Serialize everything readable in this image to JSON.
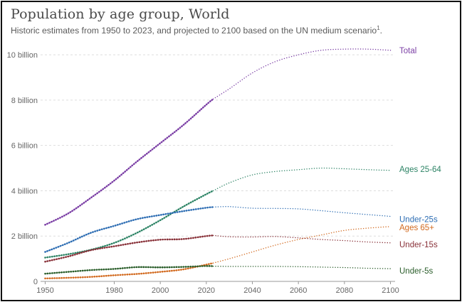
{
  "header": {
    "title": "Population by age group, World",
    "subtitle": "Historic estimates from 1950 to 2023, and projected to 2100 based on the UN medium scenario",
    "subtitle_footnote": "1",
    "subtitle_end": "."
  },
  "chart_data": {
    "type": "line",
    "title": "Population by age group, World",
    "subtitle": "Historic estimates from 1950 to 2023, and projected to 2100 based on the UN medium scenario",
    "xlabel": "",
    "ylabel": "",
    "xlim": [
      1948,
      2102
    ],
    "ylim": [
      0,
      10.6
    ],
    "x_ticks": [
      1950,
      1980,
      2000,
      2020,
      2040,
      2060,
      2080,
      2100
    ],
    "y_ticks": [
      {
        "value": 0,
        "label": "0"
      },
      {
        "value": 2,
        "label": "2 billion"
      },
      {
        "value": 4,
        "label": "4 billion"
      },
      {
        "value": 6,
        "label": "6 billion"
      },
      {
        "value": 8,
        "label": "8 billion"
      },
      {
        "value": 10,
        "label": "10 billion"
      }
    ],
    "grid": "horizontal-dashed",
    "historic_end": 2023,
    "series": [
      {
        "name": "Total",
        "color": "#7b3fa5",
        "historic": [
          [
            1950,
            2.5
          ],
          [
            1960,
            3.0
          ],
          [
            1970,
            3.7
          ],
          [
            1980,
            4.45
          ],
          [
            1990,
            5.3
          ],
          [
            2000,
            6.1
          ],
          [
            2010,
            6.9
          ],
          [
            2020,
            7.8
          ],
          [
            2023,
            8.05
          ]
        ],
        "projected": [
          [
            2023,
            8.05
          ],
          [
            2030,
            8.5
          ],
          [
            2040,
            9.2
          ],
          [
            2050,
            9.7
          ],
          [
            2060,
            10.0
          ],
          [
            2070,
            10.2
          ],
          [
            2080,
            10.25
          ],
          [
            2090,
            10.25
          ],
          [
            2100,
            10.2
          ]
        ]
      },
      {
        "name": "Ages 25-64",
        "color": "#2e8466",
        "historic": [
          [
            1950,
            1.05
          ],
          [
            1960,
            1.2
          ],
          [
            1970,
            1.4
          ],
          [
            1980,
            1.7
          ],
          [
            1990,
            2.15
          ],
          [
            2000,
            2.7
          ],
          [
            2010,
            3.3
          ],
          [
            2020,
            3.85
          ],
          [
            2023,
            4.0
          ]
        ],
        "projected": [
          [
            2023,
            4.0
          ],
          [
            2030,
            4.35
          ],
          [
            2040,
            4.7
          ],
          [
            2050,
            4.85
          ],
          [
            2060,
            4.93
          ],
          [
            2070,
            5.0
          ],
          [
            2080,
            4.97
          ],
          [
            2090,
            4.93
          ],
          [
            2100,
            4.9
          ]
        ]
      },
      {
        "name": "Under-25s",
        "color": "#2d6db3",
        "historic": [
          [
            1950,
            1.3
          ],
          [
            1960,
            1.7
          ],
          [
            1970,
            2.15
          ],
          [
            1980,
            2.45
          ],
          [
            1990,
            2.75
          ],
          [
            2000,
            2.93
          ],
          [
            2010,
            3.1
          ],
          [
            2020,
            3.25
          ],
          [
            2023,
            3.28
          ]
        ],
        "projected": [
          [
            2023,
            3.28
          ],
          [
            2030,
            3.3
          ],
          [
            2040,
            3.23
          ],
          [
            2050,
            3.22
          ],
          [
            2060,
            3.2
          ],
          [
            2070,
            3.12
          ],
          [
            2080,
            3.03
          ],
          [
            2090,
            2.95
          ],
          [
            2100,
            2.87
          ]
        ]
      },
      {
        "name": "Ages 65+",
        "color": "#d2691e",
        "historic": [
          [
            1950,
            0.13
          ],
          [
            1960,
            0.16
          ],
          [
            1970,
            0.2
          ],
          [
            1980,
            0.27
          ],
          [
            1990,
            0.33
          ],
          [
            2000,
            0.42
          ],
          [
            2010,
            0.53
          ],
          [
            2020,
            0.74
          ],
          [
            2023,
            0.81
          ]
        ],
        "projected": [
          [
            2023,
            0.81
          ],
          [
            2030,
            1.0
          ],
          [
            2040,
            1.3
          ],
          [
            2050,
            1.6
          ],
          [
            2060,
            1.85
          ],
          [
            2070,
            2.05
          ],
          [
            2080,
            2.25
          ],
          [
            2090,
            2.35
          ],
          [
            2100,
            2.42
          ]
        ]
      },
      {
        "name": "Under-15s",
        "color": "#883038",
        "historic": [
          [
            1950,
            0.87
          ],
          [
            1960,
            1.1
          ],
          [
            1970,
            1.38
          ],
          [
            1980,
            1.55
          ],
          [
            1990,
            1.72
          ],
          [
            2000,
            1.84
          ],
          [
            2010,
            1.87
          ],
          [
            2020,
            2.0
          ],
          [
            2023,
            2.03
          ]
        ],
        "projected": [
          [
            2023,
            2.03
          ],
          [
            2030,
            1.97
          ],
          [
            2040,
            1.96
          ],
          [
            2050,
            1.98
          ],
          [
            2060,
            1.92
          ],
          [
            2070,
            1.85
          ],
          [
            2080,
            1.8
          ],
          [
            2090,
            1.74
          ],
          [
            2100,
            1.7
          ]
        ]
      },
      {
        "name": "Under-5s",
        "color": "#2a5d2a",
        "historic": [
          [
            1950,
            0.34
          ],
          [
            1960,
            0.42
          ],
          [
            1970,
            0.5
          ],
          [
            1980,
            0.55
          ],
          [
            1990,
            0.63
          ],
          [
            2000,
            0.62
          ],
          [
            2010,
            0.64
          ],
          [
            2020,
            0.68
          ],
          [
            2023,
            0.67
          ]
        ],
        "projected": [
          [
            2023,
            0.67
          ],
          [
            2030,
            0.66
          ],
          [
            2040,
            0.66
          ],
          [
            2050,
            0.66
          ],
          [
            2060,
            0.65
          ],
          [
            2070,
            0.63
          ],
          [
            2080,
            0.61
          ],
          [
            2090,
            0.58
          ],
          [
            2100,
            0.56
          ]
        ]
      }
    ]
  }
}
